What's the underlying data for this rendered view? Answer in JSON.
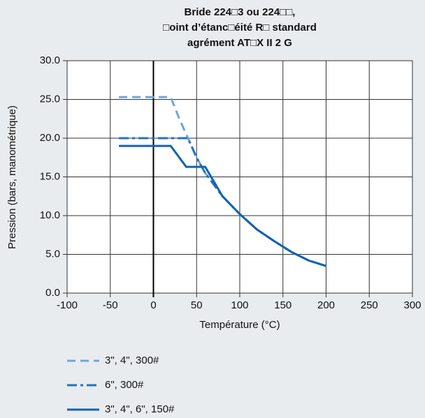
{
  "chart_data": {
    "type": "line",
    "title": [
      "Bride 224□3 ou 224□□,",
      "□oint d’étanc□éité R□ standard",
      "agrément AT□X II 2 G"
    ],
    "x_label": "Température (°C)",
    "y_label": "Pression (bars, manométrique)",
    "xlim": [
      -100,
      300
    ],
    "xticks": [
      -100,
      -50,
      0,
      50,
      100,
      150,
      200,
      250,
      300
    ],
    "ylim": [
      0,
      30
    ],
    "yticks": [
      {
        "value": 0,
        "label": "0.0"
      },
      {
        "value": 5,
        "label": "5.0"
      },
      {
        "value": 10,
        "label": "10.0"
      },
      {
        "value": 15,
        "label": "15.0"
      },
      {
        "value": 20,
        "label": "20.0"
      },
      {
        "value": 25,
        "label": "25.0"
      },
      {
        "value": 30,
        "label": "30.0"
      }
    ],
    "grid": true,
    "series": [
      {
        "name": "3\", 4\", 300#",
        "color": "#6ea6d8",
        "dash": "dashed",
        "x": [
          -40,
          20,
          30,
          40,
          50,
          60,
          80,
          100,
          120,
          140,
          160,
          180,
          200
        ],
        "values": [
          25.3,
          25.3,
          22.5,
          20,
          17.5,
          15.5,
          12.5,
          10.2,
          8.2,
          6.7,
          5.3,
          4.2,
          3.5
        ]
      },
      {
        "name": "6\", 300#",
        "color": "#1f73c4",
        "dash": "dashdot",
        "x": [
          -40,
          40,
          50,
          60,
          80,
          100,
          120,
          140,
          160,
          180,
          200
        ],
        "values": [
          20,
          20,
          17.5,
          15.5,
          12.5,
          10.2,
          8.2,
          6.7,
          5.3,
          4.2,
          3.5
        ]
      },
      {
        "name": "3\", 4\", 6\", 150#",
        "color": "#1462ae",
        "dash": "solid",
        "x": [
          -40,
          20,
          38,
          60,
          80,
          100,
          120,
          140,
          160,
          180,
          200
        ],
        "values": [
          19,
          19,
          16.3,
          16.3,
          12.5,
          10.2,
          8.2,
          6.7,
          5.3,
          4.2,
          3.5
        ]
      }
    ]
  }
}
